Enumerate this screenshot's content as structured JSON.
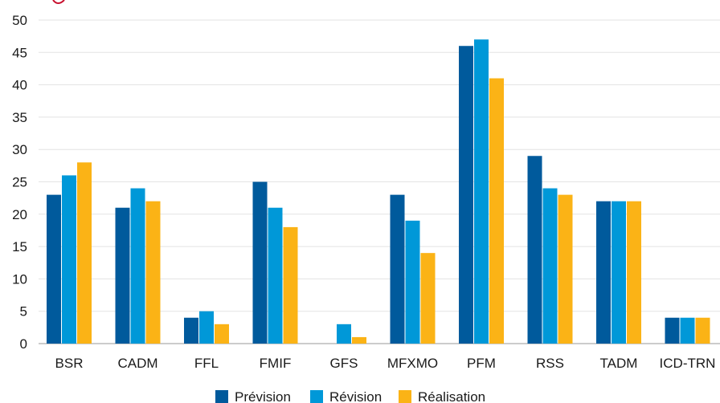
{
  "chart_data": {
    "type": "bar",
    "title": "",
    "xlabel": "",
    "ylabel": "",
    "ylim": [
      0,
      50
    ],
    "yticks": [
      0,
      5,
      10,
      15,
      20,
      25,
      30,
      35,
      40,
      45,
      50
    ],
    "grid": true,
    "legend_position": "bottom-center",
    "categories": [
      "BSR",
      "CADM",
      "FFL",
      "FMIF",
      "GFS",
      "MFXMO",
      "PFM",
      "RSS",
      "TADM",
      "ICD-TRN"
    ],
    "series": [
      {
        "name": "Prévision",
        "color": "#005a9c",
        "values": [
          23,
          21,
          4,
          25,
          0,
          23,
          46,
          29,
          22,
          4
        ]
      },
      {
        "name": "Révision",
        "color": "#0098d8",
        "values": [
          26,
          24,
          5,
          21,
          3,
          19,
          47,
          24,
          22,
          4
        ]
      },
      {
        "name": "Réalisation",
        "color": "#fbb316",
        "values": [
          28,
          22,
          3,
          18,
          1,
          14,
          41,
          23,
          22,
          4
        ]
      }
    ],
    "title_accent_color": "#c8102e"
  }
}
